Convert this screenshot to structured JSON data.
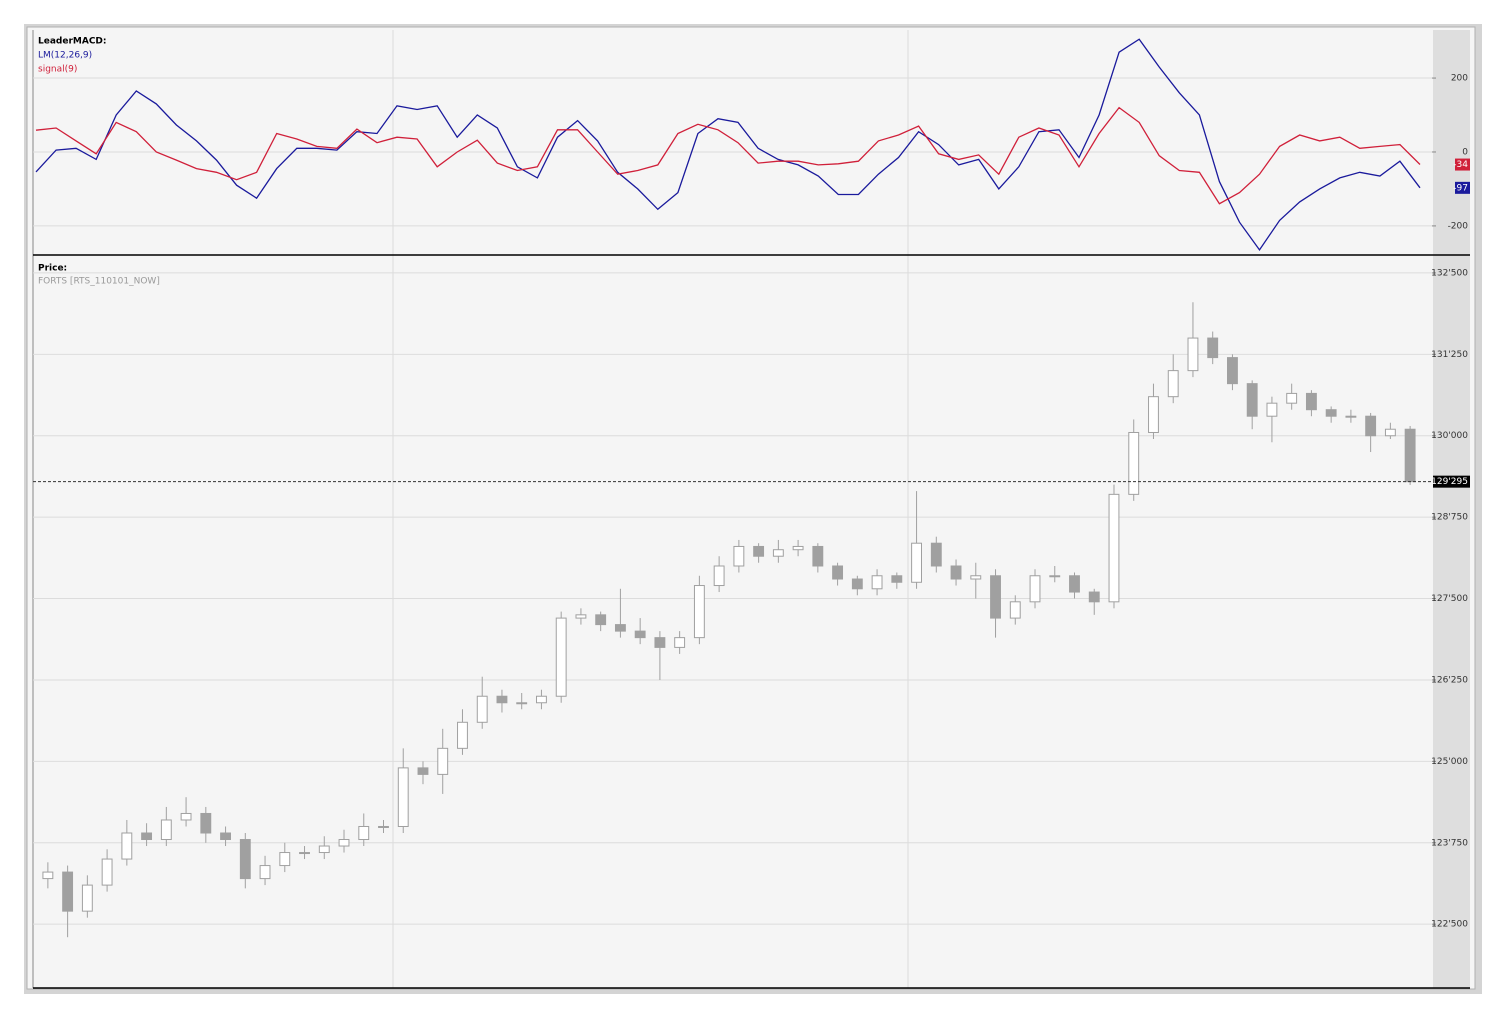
{
  "chart_data": [
    {
      "type": "line",
      "title": "LeaderMACD:",
      "series": [
        {
          "name": "LM(12,26,9)",
          "color": "#1a1a9c",
          "values": [
            -54,
            5,
            10,
            -20,
            100,
            165,
            130,
            73,
            30,
            -22,
            -90,
            -125,
            -45,
            10,
            10,
            5,
            55,
            50,
            125,
            115,
            125,
            40,
            100,
            65,
            -40,
            -70,
            40,
            85,
            30,
            -55,
            -100,
            -155,
            -110,
            50,
            90,
            80,
            10,
            -20,
            -35,
            -65,
            -115,
            -115,
            -60,
            -15,
            55,
            20,
            -35,
            -20,
            -100,
            -40,
            55,
            60,
            -15,
            100,
            270,
            305,
            230,
            160,
            100,
            -80,
            -190,
            -265,
            -185,
            -135,
            -100,
            -70,
            -55,
            -65,
            -25,
            -97
          ]
        },
        {
          "name": "signal(9)",
          "color": "#d0203a",
          "values": [
            59,
            65,
            30,
            -5,
            80,
            55,
            0,
            -22,
            -45,
            -55,
            -75,
            -55,
            50,
            35,
            15,
            10,
            62,
            25,
            40,
            35,
            -40,
            0,
            32,
            -30,
            -50,
            -40,
            60,
            60,
            0,
            -60,
            -50,
            -35,
            50,
            75,
            60,
            25,
            -30,
            -25,
            -25,
            -35,
            -32,
            -25,
            30,
            46,
            70,
            -5,
            -20,
            -8,
            -60,
            40,
            65,
            46,
            -40,
            50,
            120,
            80,
            -10,
            -50,
            -55,
            -140,
            -110,
            -60,
            15,
            46,
            30,
            40,
            10,
            15,
            20,
            -34
          ]
        }
      ],
      "ylim": [
        -276,
        330
      ],
      "yticks": [
        -200,
        0,
        200
      ],
      "grid": true
    },
    {
      "type": "candlestick",
      "title": "Price:",
      "subtitle": "FORTS [RTS_110101_NOW]",
      "color": "#a0a0a0",
      "open": [
        123200,
        123300,
        122700,
        123100,
        123500,
        123900,
        123800,
        124100,
        124200,
        123900,
        123800,
        123200,
        123400,
        123600,
        123600,
        123700,
        123800,
        124000,
        124000,
        124900,
        124800,
        125200,
        125600,
        126000,
        125900,
        125900,
        126000,
        127200,
        127250,
        127100,
        127000,
        126900,
        126750,
        126900,
        127700,
        128000,
        128300,
        128150,
        128250,
        128300,
        128000,
        127800,
        127650,
        127850,
        127750,
        128350,
        128000,
        127800,
        127850,
        127200,
        127450,
        127850,
        127850,
        127600,
        127450,
        129100,
        130050,
        130600,
        131000,
        131500,
        131200,
        130800,
        130300,
        130500,
        130650,
        130400,
        130300,
        130300,
        130000,
        130100
      ],
      "high": [
        123450,
        123400,
        123250,
        123650,
        124100,
        124050,
        124300,
        124450,
        124300,
        124000,
        123900,
        123550,
        123750,
        123700,
        123850,
        123950,
        124200,
        124100,
        125200,
        125000,
        125500,
        125800,
        126300,
        126100,
        126050,
        126100,
        127300,
        127350,
        127300,
        127650,
        127200,
        127000,
        127000,
        127850,
        128150,
        128400,
        128350,
        128400,
        128400,
        128350,
        128050,
        127850,
        127950,
        127900,
        129150,
        128450,
        128100,
        128050,
        127950,
        127550,
        127950,
        128000,
        127900,
        127650,
        129250,
        130250,
        130800,
        131250,
        132050,
        131600,
        131250,
        130850,
        130600,
        130800,
        130700,
        130450,
        130400,
        130350,
        130200,
        130150
      ],
      "low": [
        123050,
        122300,
        122600,
        123000,
        123400,
        123700,
        123700,
        124000,
        123750,
        123700,
        123050,
        123100,
        123300,
        123500,
        123500,
        123600,
        123700,
        123900,
        123900,
        124650,
        124500,
        125100,
        125500,
        125750,
        125800,
        125800,
        125900,
        127100,
        127000,
        126900,
        126800,
        126250,
        126650,
        126800,
        127600,
        127900,
        128050,
        128050,
        128150,
        127900,
        127700,
        127550,
        127550,
        127650,
        127650,
        127900,
        127700,
        127500,
        126900,
        127100,
        127350,
        127750,
        127500,
        127250,
        127350,
        129000,
        129950,
        130500,
        130900,
        131100,
        130700,
        130100,
        129900,
        130400,
        130300,
        130200,
        130200,
        129750,
        129950,
        129245
      ],
      "close": [
        123300,
        122700,
        123100,
        123500,
        123900,
        123800,
        124100,
        124200,
        123900,
        123800,
        123200,
        123400,
        123600,
        123600,
        123700,
        123800,
        124000,
        124000,
        124900,
        124800,
        125200,
        125600,
        126000,
        125900,
        125900,
        126000,
        127200,
        127250,
        127100,
        127000,
        126900,
        126750,
        126900,
        127700,
        128000,
        128300,
        128150,
        128250,
        128300,
        128000,
        127800,
        127650,
        127850,
        127750,
        128350,
        128000,
        127800,
        127850,
        127200,
        127450,
        127850,
        127850,
        127600,
        127450,
        129100,
        130050,
        130600,
        131000,
        131500,
        131200,
        130800,
        130300,
        130500,
        130650,
        130400,
        130300,
        130300,
        130000,
        130100,
        129295
      ],
      "price_line": {
        "value": 129295,
        "label": "129'295"
      },
      "ylim": [
        121520,
        132760
      ],
      "yticks": [
        {
          "value": 122500,
          "label": "122'500"
        },
        {
          "value": 123750,
          "label": "123'750"
        },
        {
          "value": 125000,
          "label": "125'000"
        },
        {
          "value": 126250,
          "label": "126'250"
        },
        {
          "value": 127500,
          "label": "127'500"
        },
        {
          "value": 128750,
          "label": "128'750"
        },
        {
          "value": 130000,
          "label": "130'000"
        },
        {
          "value": 131250,
          "label": "131'250"
        },
        {
          "value": 132500,
          "label": "132'500"
        }
      ],
      "grid": true
    }
  ]
}
